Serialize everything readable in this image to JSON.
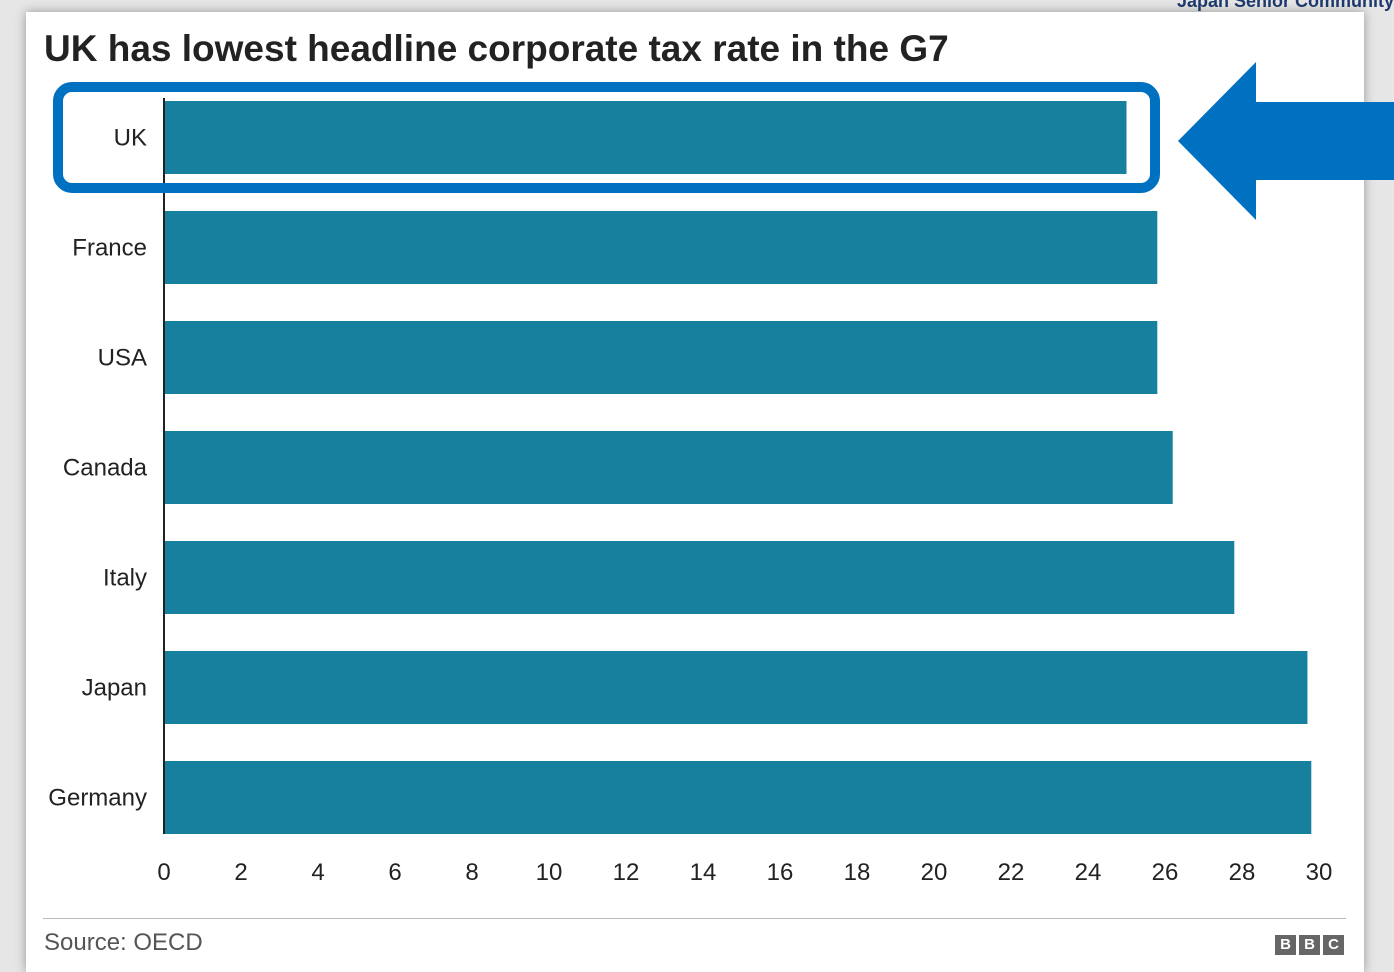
{
  "watermark": "Japan Senior Community",
  "chart_data": {
    "type": "bar",
    "orientation": "horizontal",
    "title": "UK has lowest headline corporate tax rate in the G7",
    "categories": [
      "UK",
      "France",
      "USA",
      "Canada",
      "Italy",
      "Japan",
      "Germany"
    ],
    "values": [
      25,
      25.8,
      25.8,
      26.2,
      27.8,
      29.7,
      29.8
    ],
    "xticks": [
      "0",
      "2",
      "4",
      "6",
      "8",
      "10",
      "12",
      "14",
      "16",
      "18",
      "20",
      "22",
      "24",
      "26",
      "28",
      "30"
    ],
    "xlim": [
      0,
      30
    ],
    "xlabel": "",
    "ylabel": "",
    "grid": false,
    "bar_color": "#17809e",
    "highlight": {
      "category": "UK",
      "color": "#0070c0"
    },
    "source": "Source: OECD"
  },
  "branding": {
    "logo_letters": [
      "B",
      "B",
      "C"
    ]
  },
  "colors": {
    "bar": "#17809e",
    "highlight": "#0070c0",
    "title": "#222222"
  }
}
